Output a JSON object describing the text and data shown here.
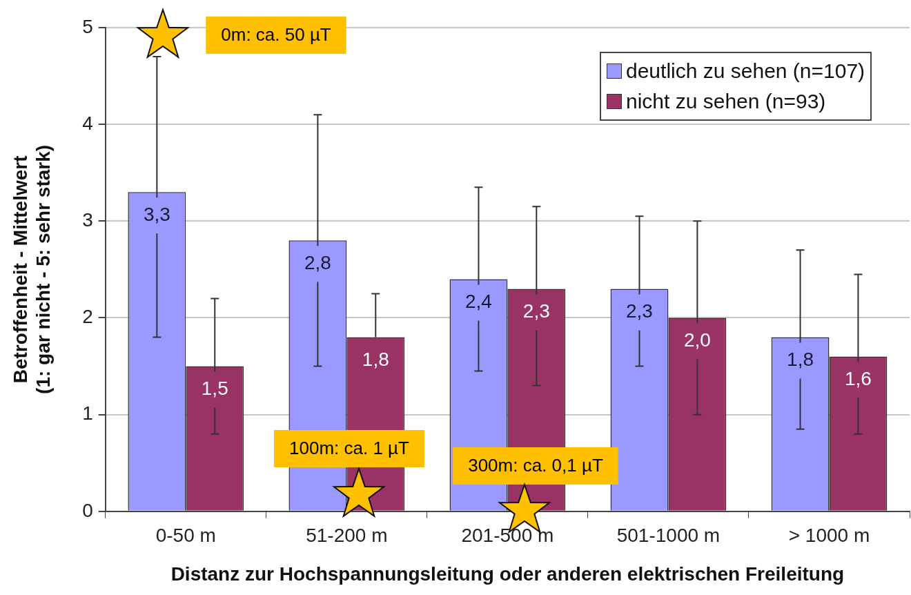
{
  "chart_data": {
    "type": "bar",
    "xlabel": "Distanz zur Hochspannungsleitung oder anderen elektrischen Freileitung",
    "ylabel": "Betroffenheit - Mittelwert\n(1: gar nicht - 5: sehr stark)",
    "categories": [
      "0-50 m",
      "51-200 m",
      "201-500 m",
      "501-1000 m",
      "> 1000 m"
    ],
    "series": [
      {
        "name": "deutlich zu sehen (n=107)",
        "color": "#9999ff",
        "values": [
          3.3,
          2.8,
          2.4,
          2.3,
          1.8
        ],
        "value_labels": [
          "3,3",
          "2,8",
          "2,4",
          "2,3",
          "1,8"
        ],
        "errors": [
          [
            1.8,
            4.7
          ],
          [
            1.5,
            4.1
          ],
          [
            1.45,
            3.35
          ],
          [
            1.5,
            3.05
          ],
          [
            0.85,
            2.7
          ]
        ]
      },
      {
        "name": "nicht zu sehen (n=93)",
        "color": "#993366",
        "values": [
          1.5,
          1.8,
          2.3,
          2.0,
          1.6
        ],
        "value_labels": [
          "1,5",
          "1,8",
          "2,3",
          "2,0",
          "1,6"
        ],
        "errors": [
          [
            0.8,
            2.2
          ],
          [
            1.8,
            2.25
          ],
          [
            1.3,
            3.15
          ],
          [
            1.0,
            3.0
          ],
          [
            0.8,
            2.45
          ]
        ]
      }
    ],
    "ylim": [
      0,
      5
    ],
    "yticks": [
      0,
      1,
      2,
      3,
      4,
      5
    ],
    "grid": "y",
    "legend": "top right",
    "annotations": [
      "0m: ca. 50 µT",
      "100m: ca. 1 µT",
      "300m: ca. 0,1 µT"
    ]
  }
}
